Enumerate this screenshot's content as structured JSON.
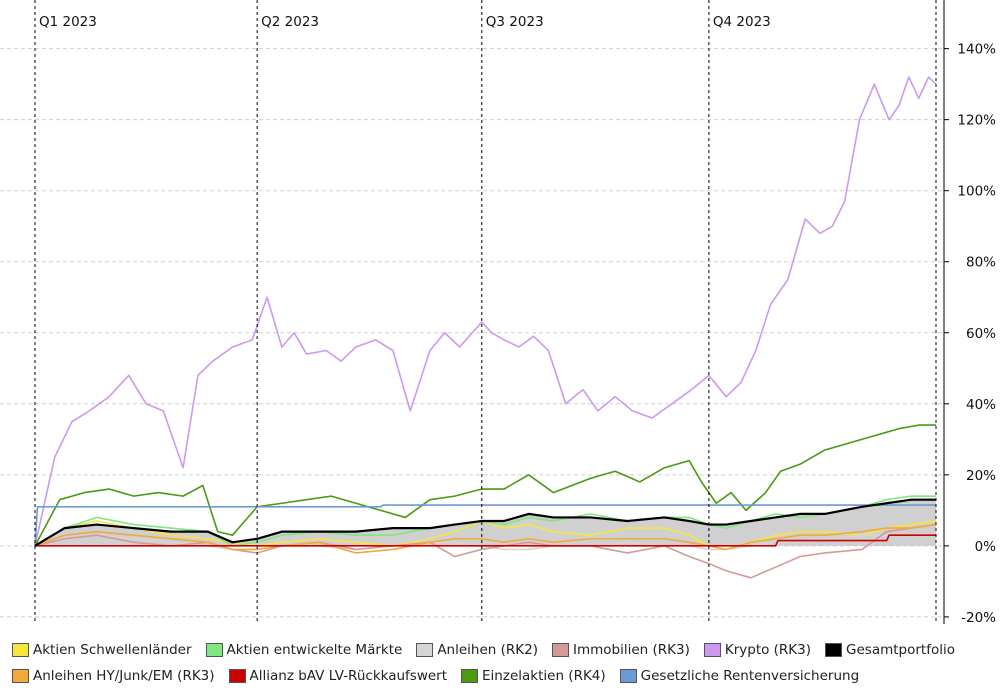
{
  "chart_data": {
    "type": "line",
    "title": "",
    "xlabel": "",
    "ylabel": "",
    "ylim": [
      -22,
      152
    ],
    "y_ticks": [
      -20,
      0,
      20,
      40,
      60,
      80,
      100,
      120,
      140
    ],
    "y_tick_labels": [
      "-20%",
      "0%",
      "20%",
      "40%",
      "60%",
      "80%",
      "100%",
      "120%",
      "140%"
    ],
    "x_range_days": [
      0,
      365
    ],
    "quarters": [
      {
        "label": "Q1 2023",
        "day": 0
      },
      {
        "label": "Q2 2023",
        "day": 90
      },
      {
        "label": "Q3 2023",
        "day": 181
      },
      {
        "label": "Q4 2023",
        "day": 273
      },
      {
        "label": "",
        "day": 365
      }
    ],
    "series": [
      {
        "name": "Aktien Schwellenländer",
        "color": "#f5e642",
        "x": [
          0,
          12,
          25,
          40,
          55,
          70,
          80,
          90,
          100,
          115,
          130,
          145,
          160,
          170,
          181,
          190,
          200,
          210,
          225,
          240,
          255,
          265,
          273,
          280,
          290,
          300,
          310,
          320,
          335,
          345,
          355,
          365
        ],
        "values": [
          0,
          5,
          7,
          5,
          3,
          2,
          1,
          0,
          1,
          2,
          1,
          0,
          2,
          4,
          7,
          5,
          6,
          4,
          3,
          5,
          5,
          3,
          0,
          -1,
          1,
          3,
          4,
          4,
          3,
          5,
          6,
          7
        ]
      },
      {
        "name": "Aktien entwickelte Märkte",
        "color": "#7fe87f",
        "x": [
          0,
          12,
          25,
          40,
          55,
          70,
          80,
          90,
          100,
          115,
          130,
          145,
          160,
          170,
          181,
          190,
          200,
          210,
          225,
          240,
          255,
          265,
          273,
          280,
          290,
          300,
          310,
          320,
          335,
          345,
          355,
          365
        ],
        "values": [
          0,
          5,
          8,
          6,
          5,
          4,
          0,
          1,
          3,
          4,
          3,
          3,
          5,
          6,
          7,
          6,
          8,
          7,
          9,
          7,
          8,
          8,
          6,
          5,
          7,
          9,
          8,
          9,
          11,
          13,
          14,
          14
        ]
      },
      {
        "name": "Anleihen (RK2)",
        "color": "#d4d6d3",
        "x": [
          0,
          12,
          25,
          40,
          55,
          70,
          80,
          90,
          100,
          115,
          130,
          145,
          160,
          170,
          181,
          190,
          200,
          210,
          225,
          240,
          255,
          265,
          273,
          280,
          290,
          300,
          310,
          320,
          335,
          345,
          355,
          365
        ],
        "values": [
          0,
          2,
          3,
          2,
          1,
          0,
          -1,
          -1,
          0,
          0,
          -1,
          0,
          1,
          1,
          0,
          -1,
          -1,
          0,
          0,
          1,
          0,
          0,
          -1,
          -1,
          0,
          1,
          1,
          2,
          3,
          3,
          3,
          3
        ]
      },
      {
        "name": "Immobilien (RK3)",
        "color": "#d49a96",
        "x": [
          0,
          12,
          25,
          40,
          55,
          70,
          80,
          90,
          100,
          115,
          130,
          145,
          160,
          170,
          181,
          190,
          200,
          210,
          225,
          240,
          255,
          265,
          273,
          280,
          290,
          300,
          310,
          320,
          335,
          345,
          355,
          365
        ],
        "values": [
          0,
          2,
          3,
          1,
          0,
          1,
          -1,
          -2,
          0,
          1,
          -1,
          0,
          1,
          -3,
          -1,
          0,
          1,
          0,
          0,
          -2,
          0,
          -3,
          -5,
          -7,
          -9,
          -6,
          -3,
          -2,
          -1,
          4,
          5,
          6
        ]
      },
      {
        "name": "Krypto (RK3)",
        "color": "#cc99ee",
        "x": [
          0,
          8,
          15,
          22,
          30,
          38,
          45,
          52,
          60,
          66,
          72,
          80,
          88,
          94,
          100,
          105,
          110,
          118,
          124,
          130,
          138,
          145,
          152,
          160,
          166,
          172,
          181,
          185,
          190,
          196,
          202,
          208,
          215,
          222,
          228,
          235,
          242,
          250,
          258,
          266,
          273,
          280,
          286,
          292,
          298,
          305,
          312,
          318,
          323,
          328,
          334,
          340,
          346,
          350,
          354,
          358,
          362,
          365
        ],
        "values": [
          0,
          25,
          35,
          38,
          42,
          48,
          40,
          38,
          22,
          48,
          52,
          56,
          58,
          70,
          56,
          60,
          54,
          55,
          52,
          56,
          58,
          55,
          38,
          55,
          60,
          56,
          63,
          60,
          58,
          56,
          59,
          55,
          40,
          44,
          38,
          42,
          38,
          36,
          40,
          44,
          48,
          42,
          46,
          55,
          68,
          75,
          92,
          88,
          90,
          97,
          120,
          130,
          120,
          124,
          132,
          126,
          132,
          130
        ]
      },
      {
        "name": "Gesamtportfolio",
        "color": "#000000",
        "x": [
          0,
          12,
          25,
          40,
          55,
          70,
          80,
          90,
          100,
          115,
          130,
          145,
          160,
          170,
          181,
          190,
          200,
          210,
          225,
          240,
          255,
          265,
          273,
          280,
          290,
          300,
          310,
          320,
          335,
          345,
          355,
          365
        ],
        "values": [
          0,
          5,
          6,
          5,
          4,
          4,
          1,
          2,
          4,
          4,
          4,
          5,
          5,
          6,
          7,
          7,
          9,
          8,
          8,
          7,
          8,
          7,
          6,
          6,
          7,
          8,
          9,
          9,
          11,
          12,
          13,
          13
        ]
      },
      {
        "name": "Anleihen HY/Junk/EM (RK3)",
        "color": "#f2a93b",
        "x": [
          0,
          12,
          25,
          40,
          55,
          70,
          80,
          90,
          100,
          115,
          130,
          145,
          160,
          170,
          181,
          190,
          200,
          210,
          225,
          240,
          255,
          265,
          273,
          280,
          290,
          300,
          310,
          320,
          335,
          345,
          355,
          365
        ],
        "values": [
          0,
          3,
          4,
          3,
          2,
          1,
          -1,
          -1,
          0,
          1,
          -2,
          -1,
          1,
          2,
          2,
          1,
          2,
          1,
          2,
          2,
          2,
          1,
          0,
          -1,
          1,
          2,
          3,
          3,
          4,
          5,
          5,
          6
        ]
      },
      {
        "name": "Allianz bAV LV-Rückkaufswert",
        "color": "#cc0000",
        "x": [
          0,
          300,
          301,
          345,
          346,
          365
        ],
        "values": [
          0,
          0,
          1.5,
          1.5,
          3,
          3
        ]
      },
      {
        "name": "Einzelaktien (RK4)",
        "color": "#4a9a12",
        "x": [
          0,
          10,
          20,
          30,
          40,
          50,
          60,
          68,
          74,
          80,
          90,
          100,
          110,
          120,
          130,
          140,
          150,
          160,
          170,
          181,
          190,
          200,
          210,
          225,
          235,
          245,
          255,
          265,
          270,
          276,
          282,
          288,
          296,
          302,
          310,
          320,
          330,
          340,
          350,
          358,
          365
        ],
        "values": [
          0,
          13,
          15,
          16,
          14,
          15,
          14,
          17,
          4,
          3,
          11,
          12,
          13,
          14,
          12,
          10,
          8,
          13,
          14,
          16,
          16,
          20,
          15,
          19,
          21,
          18,
          22,
          24,
          18,
          12,
          15,
          10,
          15,
          21,
          23,
          27,
          29,
          31,
          33,
          34,
          34
        ]
      },
      {
        "name": "Gesetzliche Rentenversicherung",
        "color": "#6b9bd1",
        "x": [
          0,
          1,
          140,
          141,
          365
        ],
        "values": [
          0,
          11,
          11,
          11.5,
          11.5
        ]
      }
    ],
    "legend_rows": [
      [
        "Aktien Schwellenländer",
        "Aktien entwickelte Märkte",
        "Anleihen (RK2)",
        "Immobilien (RK3)",
        "Krypto (RK3)",
        "Gesamtportfolio"
      ],
      [
        "Anleihen HY/Junk/EM (RK3)",
        "Allianz bAV LV-Rückkaufswert",
        "Einzelaktien (RK4)",
        "Gesetzliche Rentenversicherung"
      ]
    ],
    "legend_position": "bottom"
  }
}
